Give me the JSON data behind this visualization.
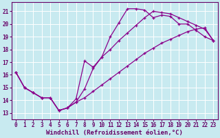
{
  "background_color": "#c8eaf0",
  "line_color": "#8b008b",
  "xlabel": "Windchill (Refroidissement éolien,°C)",
  "xlim": [
    -0.5,
    23.5
  ],
  "ylim": [
    12.5,
    21.7
  ],
  "yticks": [
    13,
    14,
    15,
    16,
    17,
    18,
    19,
    20,
    21
  ],
  "line1_x": [
    0,
    1,
    2,
    3,
    4,
    5,
    6,
    7,
    8,
    9,
    10,
    11,
    12,
    13,
    14,
    15,
    16,
    17,
    18,
    19,
    20,
    21,
    22,
    23
  ],
  "line1_y": [
    16.2,
    15.0,
    14.6,
    14.2,
    14.2,
    13.2,
    13.4,
    13.85,
    14.9,
    16.5,
    17.4,
    19.0,
    20.1,
    21.2,
    21.2,
    21.1,
    20.5,
    20.7,
    20.6,
    20.0,
    20.0,
    19.5,
    19.0,
    18.7
  ],
  "line2_x": [
    0,
    1,
    2,
    3,
    4,
    5,
    6,
    7,
    8,
    9,
    10,
    11,
    12,
    13,
    14,
    15,
    16,
    17,
    18,
    19,
    20,
    21,
    22,
    23
  ],
  "line2_y": [
    16.2,
    15.0,
    14.6,
    14.2,
    14.2,
    13.2,
    13.4,
    14.1,
    17.1,
    16.6,
    17.4,
    18.0,
    18.7,
    19.3,
    19.9,
    20.5,
    21.0,
    20.9,
    20.8,
    20.5,
    20.2,
    19.9,
    19.6,
    18.7
  ],
  "line3_x": [
    0,
    1,
    2,
    3,
    4,
    5,
    6,
    7,
    8,
    9,
    10,
    11,
    12,
    13,
    14,
    15,
    16,
    17,
    18,
    19,
    20,
    21,
    22,
    23
  ],
  "line3_y": [
    16.2,
    15.0,
    14.6,
    14.2,
    14.2,
    13.2,
    13.4,
    13.85,
    14.2,
    14.7,
    15.2,
    15.7,
    16.2,
    16.7,
    17.2,
    17.7,
    18.1,
    18.5,
    18.8,
    19.1,
    19.4,
    19.6,
    19.7,
    18.7
  ],
  "tick_fontsize": 5.5,
  "xlabel_fontsize": 6.5
}
